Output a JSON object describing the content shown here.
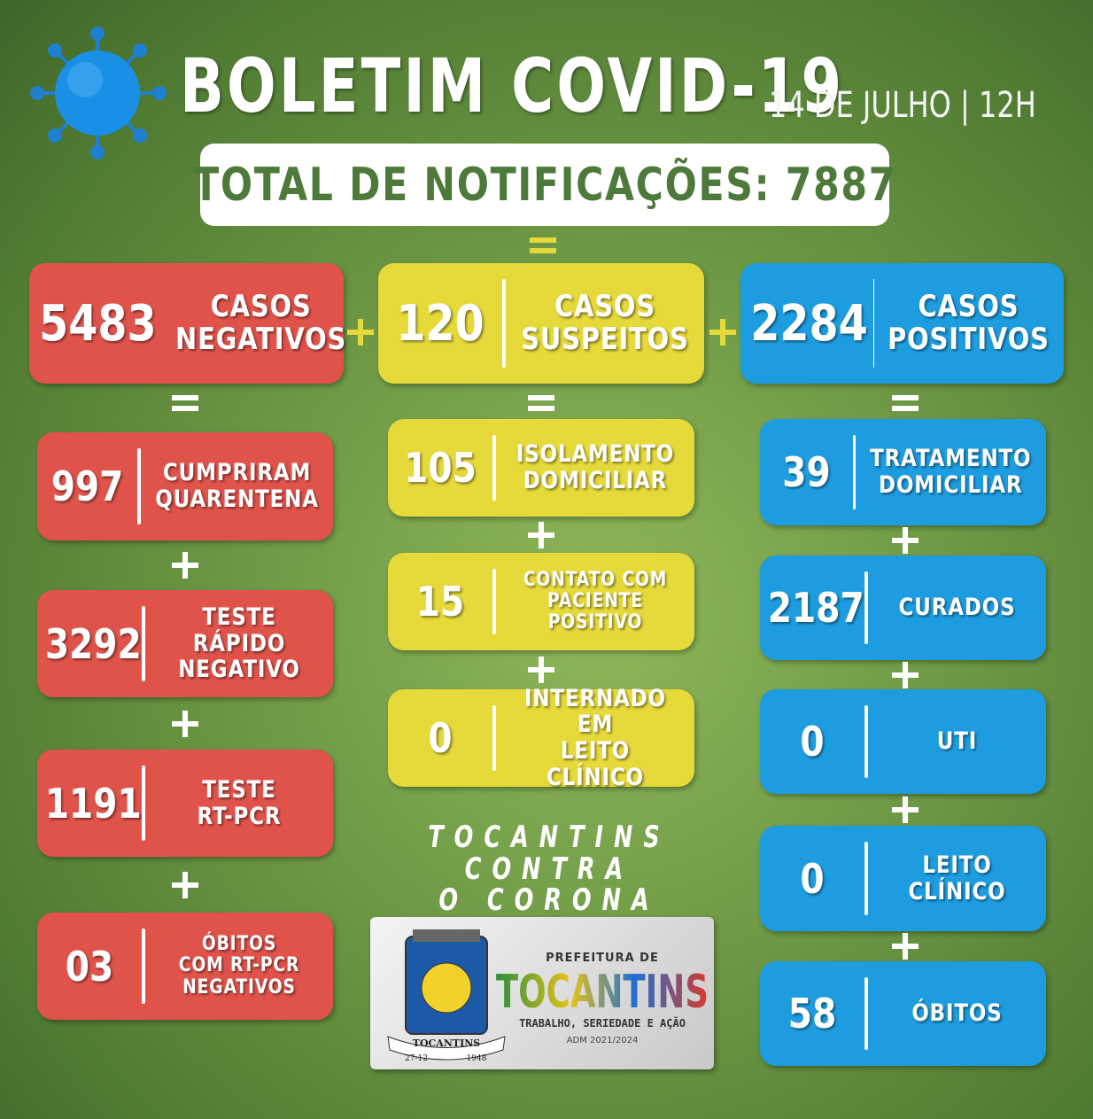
{
  "header": {
    "title": "BOLETIM COVID-19",
    "date": "14 DE JULHO | 12H"
  },
  "total": "TOTAL DE NOTIFICAÇÕES: 7887",
  "columns": [
    {
      "top": {
        "value": 5483,
        "label": "CASOS\nNEGATIVOS"
      },
      "items": [
        {
          "value": 997,
          "label": "CUMPRIRAM\nQUARENTENA"
        },
        {
          "value": 3292,
          "label": "TESTE RÁPIDO\nNEGATIVO"
        },
        {
          "value": 1191,
          "label": "TESTE\nRT-PCR"
        },
        {
          "value": "03",
          "label": "ÓBITOS\nCOM RT-PCR\nNEGATIVOS"
        }
      ]
    },
    {
      "top": {
        "value": 120,
        "label": "CASOS\nSUSPEITOS"
      },
      "items": [
        {
          "value": 105,
          "label": "ISOLAMENTO\nDOMICILIAR"
        },
        {
          "value": 15,
          "label": "CONTATO COM\nPACIENTE\nPOSITIVO"
        },
        {
          "value": 0,
          "label": "INTERNADO EM\nLEITO CLÍNICO"
        }
      ]
    },
    {
      "top": {
        "value": 2284,
        "label": "CASOS\nPOSITIVOS"
      },
      "items": [
        {
          "value": 39,
          "label": "TRATAMENTO\nDOMICILIAR"
        },
        {
          "value": 2187,
          "label": "CURADOS"
        },
        {
          "value": 0,
          "label": "UTI"
        },
        {
          "value": 0,
          "label": "LEITO\nCLÍNICO"
        },
        {
          "value": 58,
          "label": "ÓBITOS"
        }
      ]
    }
  ],
  "footer": {
    "slogan": "TOCANTINS CONTRA\nO CORONA",
    "logo": {
      "prefix": "PREFEITURA DE",
      "name": "TOCANTINS",
      "motto": "TRABALHO, SERIEDADE E AÇÃO",
      "term": "ADM 2021/2024",
      "seal": {
        "name": "TOCANTINS",
        "day": "27-12",
        "year": "1948"
      }
    }
  }
}
